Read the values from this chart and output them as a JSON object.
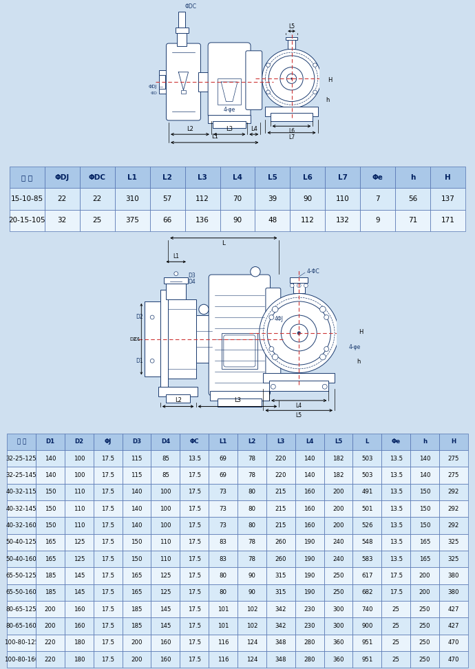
{
  "bg_color": "#cfe0f0",
  "diagram_bg": "#ddeeff",
  "table1_header": [
    "型 号",
    "ΦDJ",
    "ΦDC",
    "L1",
    "L2",
    "L3",
    "L4",
    "L5",
    "L6",
    "L7",
    "Φe",
    "h",
    "H"
  ],
  "table1_rows": [
    [
      "15-10-85",
      "22",
      "22",
      "310",
      "57",
      "112",
      "70",
      "39",
      "90",
      "110",
      "7",
      "56",
      "137"
    ],
    [
      "20-15-105",
      "32",
      "25",
      "375",
      "66",
      "136",
      "90",
      "48",
      "112",
      "132",
      "9",
      "71",
      "171"
    ]
  ],
  "table2_header": [
    "型 号",
    "D1",
    "D2",
    "ΦJ",
    "D3",
    "D4",
    "ΦC",
    "L1",
    "L2",
    "L3",
    "L4",
    "L5",
    "L",
    "Φe",
    "h",
    "H"
  ],
  "table2_rows": [
    [
      "32-25-125",
      "140",
      "100",
      "17.5",
      "115",
      "85",
      "13.5",
      "69",
      "78",
      "220",
      "140",
      "182",
      "503",
      "13.5",
      "140",
      "275"
    ],
    [
      "32-25-145",
      "140",
      "100",
      "17.5",
      "115",
      "85",
      "17.5",
      "69",
      "78",
      "220",
      "140",
      "182",
      "503",
      "13.5",
      "140",
      "275"
    ],
    [
      "40-32-115",
      "150",
      "110",
      "17.5",
      "140",
      "100",
      "17.5",
      "73",
      "80",
      "215",
      "160",
      "200",
      "491",
      "13.5",
      "150",
      "292"
    ],
    [
      "40-32-145",
      "150",
      "110",
      "17.5",
      "140",
      "100",
      "17.5",
      "73",
      "80",
      "215",
      "160",
      "200",
      "501",
      "13.5",
      "150",
      "292"
    ],
    [
      "40-32-160",
      "150",
      "110",
      "17.5",
      "140",
      "100",
      "17.5",
      "73",
      "80",
      "215",
      "160",
      "200",
      "526",
      "13.5",
      "150",
      "292"
    ],
    [
      "50-40-125",
      "165",
      "125",
      "17.5",
      "150",
      "110",
      "17.5",
      "83",
      "78",
      "260",
      "190",
      "240",
      "548",
      "13.5",
      "165",
      "325"
    ],
    [
      "50-40-160",
      "165",
      "125",
      "17.5",
      "150",
      "110",
      "17.5",
      "83",
      "78",
      "260",
      "190",
      "240",
      "583",
      "13.5",
      "165",
      "325"
    ],
    [
      "65-50-125",
      "185",
      "145",
      "17.5",
      "165",
      "125",
      "17.5",
      "80",
      "90",
      "315",
      "190",
      "250",
      "617",
      "17.5",
      "200",
      "380"
    ],
    [
      "65-50-160",
      "185",
      "145",
      "17.5",
      "165",
      "125",
      "17.5",
      "80",
      "90",
      "315",
      "190",
      "250",
      "682",
      "17.5",
      "200",
      "380"
    ],
    [
      "80-65-125",
      "200",
      "160",
      "17.5",
      "185",
      "145",
      "17.5",
      "101",
      "102",
      "342",
      "230",
      "300",
      "740",
      "25",
      "250",
      "427"
    ],
    [
      "80-65-160",
      "200",
      "160",
      "17.5",
      "185",
      "145",
      "17.5",
      "101",
      "102",
      "342",
      "230",
      "300",
      "900",
      "25",
      "250",
      "427"
    ],
    [
      "100-80-125",
      "220",
      "180",
      "17.5",
      "200",
      "160",
      "17.5",
      "116",
      "124",
      "348",
      "280",
      "360",
      "951",
      "25",
      "250",
      "470"
    ],
    [
      "100-80-160",
      "220",
      "180",
      "17.5",
      "200",
      "160",
      "17.5",
      "116",
      "124",
      "348",
      "280",
      "360",
      "951",
      "25",
      "250",
      "470"
    ]
  ],
  "header_bg": "#aac8e8",
  "row_bg_odd": "#d8eaf8",
  "row_bg_even": "#eaf4fc",
  "lc": "#1a3a6e",
  "dash_color": "#cc3333"
}
